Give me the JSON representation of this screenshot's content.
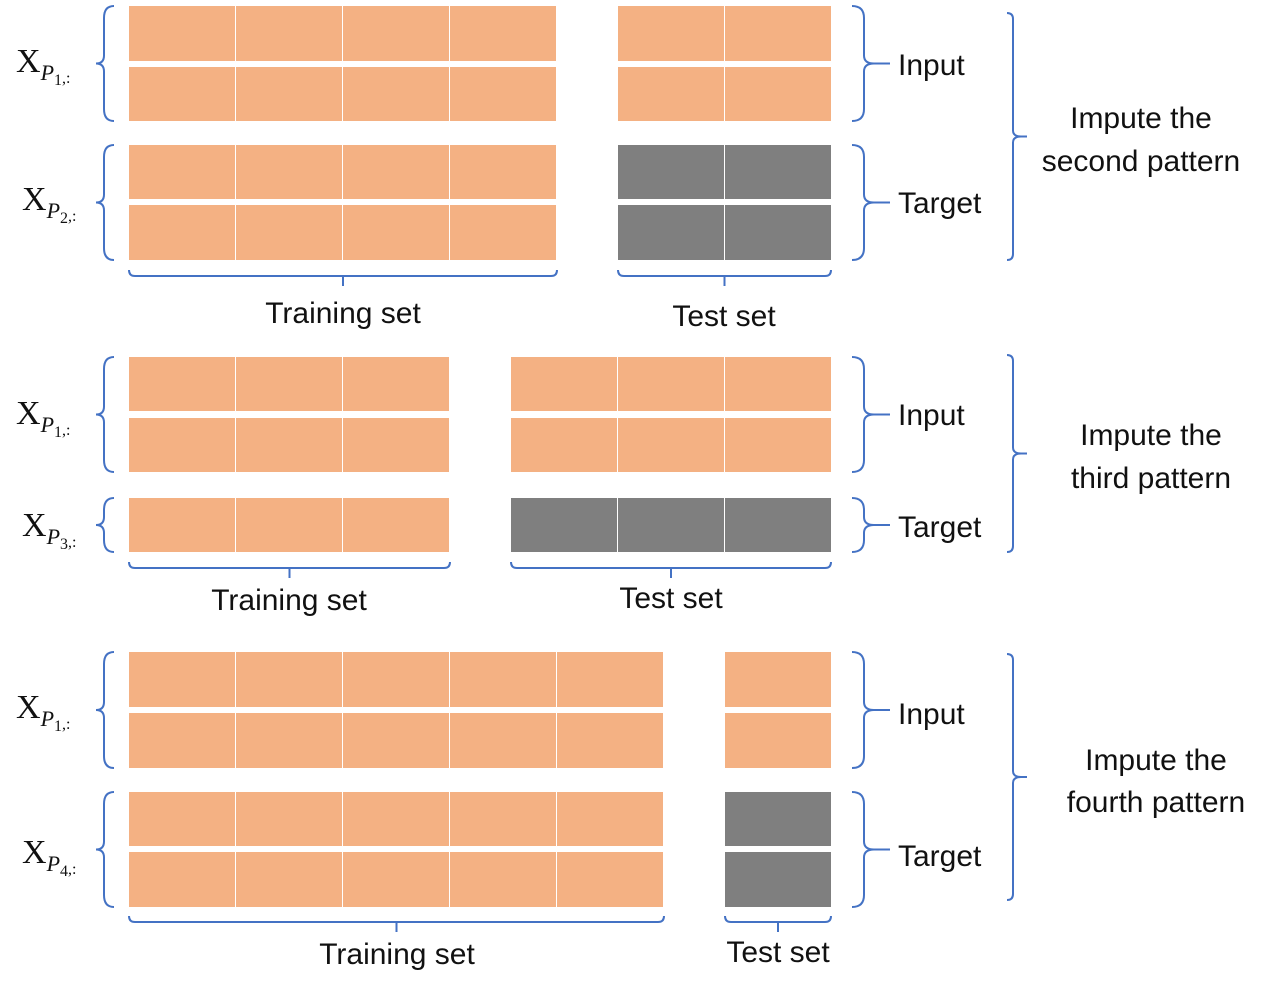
{
  "colors": {
    "train": "#f4b183",
    "target_test": "#7f7f7f",
    "bracket": "#4472c4",
    "text": "#111111"
  },
  "panels": [
    {
      "input_label": "Input",
      "target_label": "Target",
      "training_label": "Training set",
      "test_label": "Test set",
      "description": [
        "Impute the",
        "second pattern"
      ],
      "input_var": {
        "base": "X",
        "sub": "P",
        "subsub": "1",
        "tail": ",:"
      },
      "target_var": {
        "base": "X",
        "sub": "P",
        "subsub": "2",
        "tail": ",:"
      }
    },
    {
      "input_label": "Input",
      "target_label": "Target",
      "training_label": "Training set",
      "test_label": "Test set",
      "description": [
        "Impute the",
        "third pattern"
      ],
      "input_var": {
        "base": "X",
        "sub": "P",
        "subsub": "1",
        "tail": ",:"
      },
      "target_var": {
        "base": "X",
        "sub": "P",
        "subsub": "3",
        "tail": ",:"
      }
    },
    {
      "input_label": "Input",
      "target_label": "Target",
      "training_label": "Training set",
      "test_label": "Test set",
      "description": [
        "Impute the",
        "fourth pattern"
      ],
      "input_var": {
        "base": "X",
        "sub": "P",
        "subsub": "1",
        "tail": ",:"
      },
      "target_var": {
        "base": "X",
        "sub": "P",
        "subsub": "4",
        "tail": ",:"
      }
    }
  ]
}
